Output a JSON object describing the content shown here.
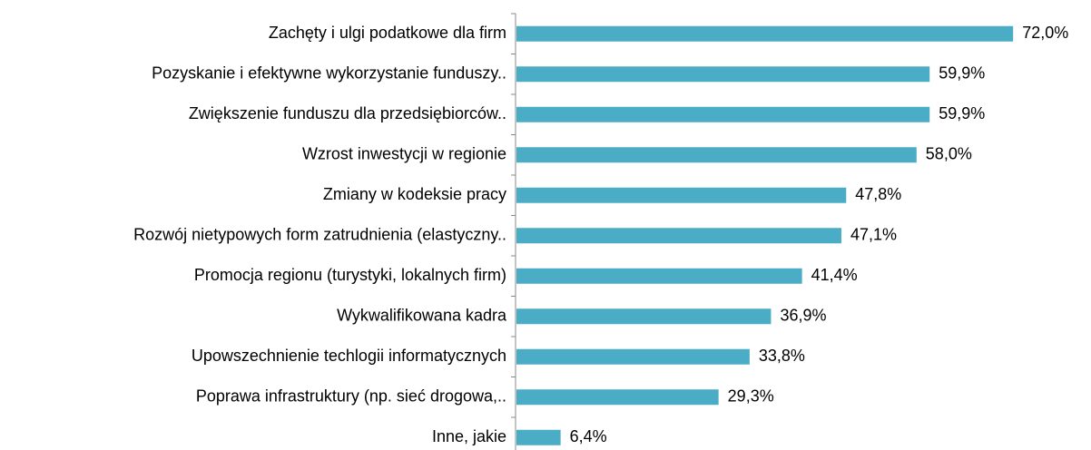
{
  "chart_data": {
    "type": "bar",
    "orientation": "horizontal",
    "categories": [
      "Zachęty i ulgi podatkowe dla firm",
      "Pozyskanie i efektywne wykorzystanie funduszy..",
      "Zwiększenie funduszu dla przedsiębiorców..",
      "Wzrost inwestycji w regionie",
      "Zmiany w kodeksie pracy",
      "Rozwój nietypowych form zatrudnienia (elastyczny..",
      "Promocja regionu (turystyki, lokalnych firm)",
      "Wykwalifikowana kadra",
      "Upowszechnienie techlogii informatycznych",
      "Poprawa infrastruktury (np. sieć drogowa,..",
      "Inne, jakie"
    ],
    "values": [
      72.0,
      59.9,
      59.9,
      58.0,
      47.8,
      47.1,
      41.4,
      36.9,
      33.8,
      29.3,
      6.4
    ],
    "value_labels": [
      "72,0%",
      "59,9%",
      "59,9%",
      "58,0%",
      "47,8%",
      "47,1%",
      "41,4%",
      "36,9%",
      "33,8%",
      "29,3%",
      "6,4%"
    ],
    "color": "#4bacc6",
    "xlim": [
      0,
      80
    ]
  }
}
